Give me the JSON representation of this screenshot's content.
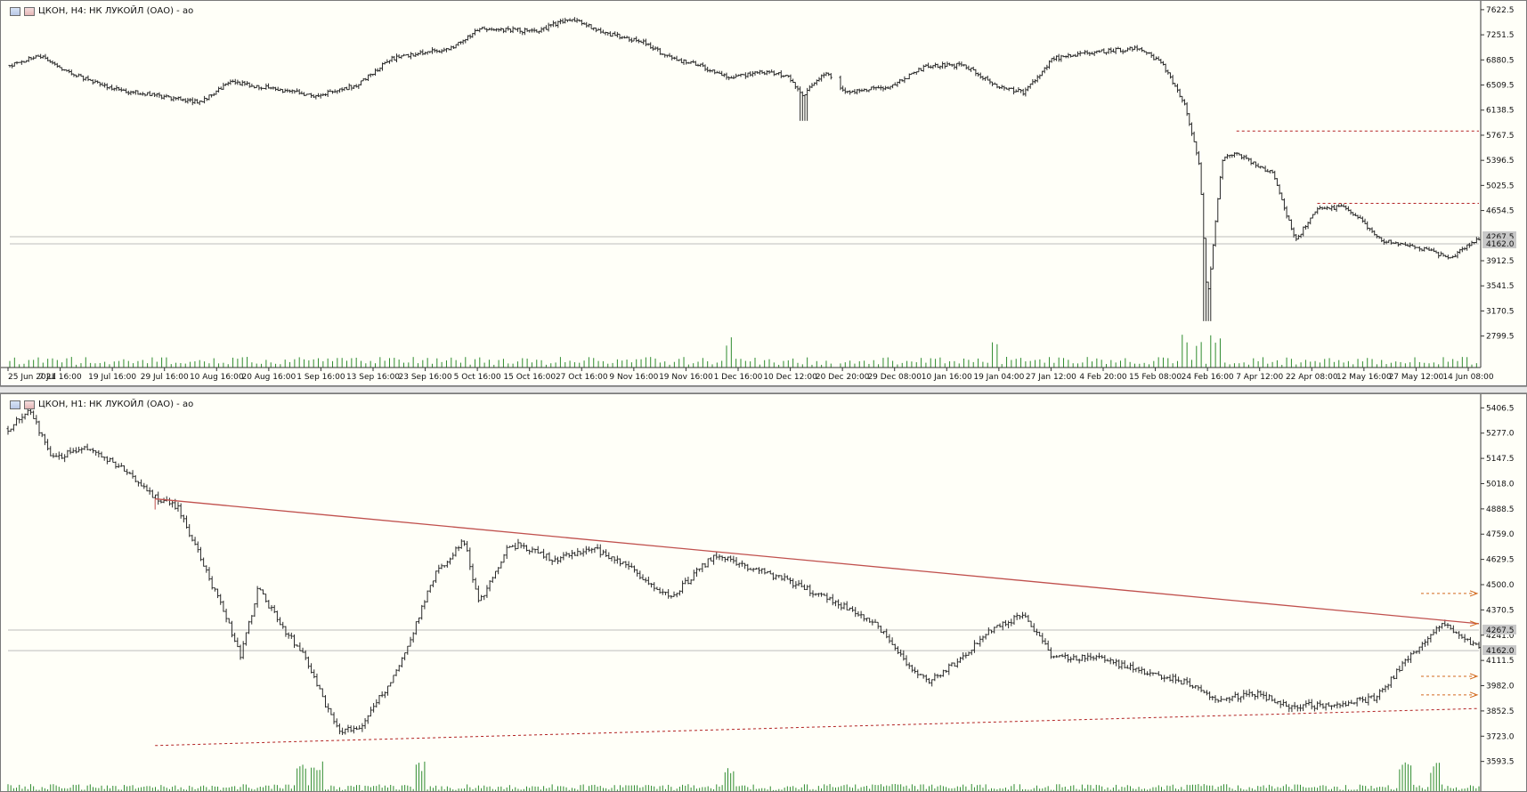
{
  "window": {
    "top_title": "ЦКОН, H4:  НК ЛУКОЙЛ (ОАО) - ао",
    "bottom_title": "ЦКОН, H1:  НК ЛУКОЙЛ (ОАО) - ао"
  },
  "colors": {
    "background": "#fffff8",
    "bar": "#2a2a2a",
    "volume": "#2e8b2e",
    "trendline": "#c0504d",
    "level": "#b22222",
    "grid_price": "#bdbdbd"
  },
  "chart_data": [
    {
      "type": "ohlc",
      "timeframe": "H4",
      "title": "ЦКОН, H4:  НК ЛУКОЙЛ (ОАО) - ао",
      "ylim": [
        2650,
        7700
      ],
      "y_ticks": [
        "7622.5",
        "7251.5",
        "6880.5",
        "6509.5",
        "6138.5",
        "5767.5",
        "5396.5",
        "5025.5",
        "4654.5",
        "3912.5",
        "3541.5",
        "3170.5",
        "2799.5"
      ],
      "price_labels": [
        "4267.5",
        "4162.0"
      ],
      "x_ticks": [
        "25 Jun 2021",
        "7 Jul 16:00",
        "19 Jul 16:00",
        "29 Jul 16:00",
        "10 Aug 16:00",
        "20 Aug 16:00",
        "1 Sep 16:00",
        "13 Sep 16:00",
        "23 Sep 16:00",
        "5 Oct 16:00",
        "15 Oct 16:00",
        "27 Oct 16:00",
        "9 Nov 16:00",
        "19 Nov 16:00",
        "1 Dec 16:00",
        "10 Dec 12:00",
        "20 Dec 20:00",
        "29 Dec 08:00",
        "10 Jan 16:00",
        "19 Jan 04:00",
        "27 Jan 12:00",
        "4 Feb 20:00",
        "15 Feb 08:00",
        "24 Feb 16:00",
        "7 Apr 12:00",
        "22 Apr 08:00",
        "12 May 16:00",
        "27 May 12:00",
        "14 Jun 08:00"
      ],
      "anchors": [
        [
          0,
          6800
        ],
        [
          0.02,
          6950
        ],
        [
          0.04,
          6700
        ],
        [
          0.07,
          6450
        ],
        [
          0.1,
          6350
        ],
        [
          0.13,
          6250
        ],
        [
          0.15,
          6550
        ],
        [
          0.18,
          6450
        ],
        [
          0.21,
          6350
        ],
        [
          0.235,
          6500
        ],
        [
          0.26,
          6900
        ],
        [
          0.3,
          7050
        ],
        [
          0.32,
          7350
        ],
        [
          0.36,
          7300
        ],
        [
          0.38,
          7500
        ],
        [
          0.41,
          7250
        ],
        [
          0.43,
          7150
        ],
        [
          0.45,
          6900
        ],
        [
          0.47,
          6800
        ],
        [
          0.49,
          6600
        ],
        [
          0.51,
          6700
        ],
        [
          0.53,
          6650
        ],
        [
          0.54,
          6350
        ],
        [
          0.555,
          6700
        ],
        [
          0.57,
          6400
        ],
        [
          0.6,
          6500
        ],
        [
          0.625,
          6800
        ],
        [
          0.65,
          6800
        ],
        [
          0.67,
          6500
        ],
        [
          0.69,
          6400
        ],
        [
          0.71,
          6900
        ],
        [
          0.74,
          7000
        ],
        [
          0.77,
          7050
        ],
        [
          0.785,
          6800
        ],
        [
          0.8,
          6200
        ],
        [
          0.81,
          5300
        ],
        [
          0.815,
          3300
        ],
        [
          0.825,
          5400
        ],
        [
          0.835,
          5500
        ],
        [
          0.86,
          5200
        ],
        [
          0.875,
          4200
        ],
        [
          0.89,
          4700
        ],
        [
          0.91,
          4700
        ],
        [
          0.935,
          4200
        ],
        [
          0.96,
          4100
        ],
        [
          0.98,
          3950
        ],
        [
          1,
          4250
        ]
      ],
      "gap": [
        0.56,
        0.565
      ],
      "volume_spikes": [
        0.49,
        0.67,
        0.8,
        0.81,
        0.82
      ],
      "levels": [
        {
          "value": 5830,
          "from": 0.835
        },
        {
          "value": 4760,
          "from": 0.89
        }
      ],
      "current_lines": [
        4267.5,
        4162.0
      ]
    },
    {
      "type": "ohlc",
      "timeframe": "H1",
      "title": "ЦКОН, H1:  НК ЛУКОЙЛ (ОАО) - ао",
      "ylim": [
        3560,
        5440
      ],
      "y_ticks": [
        "5406.5",
        "5277.0",
        "5147.5",
        "5018.0",
        "4888.5",
        "4759.0",
        "4629.5",
        "4500.0",
        "4370.5",
        "4241.0",
        "4111.5",
        "3982.0",
        "3852.5",
        "3723.0",
        "3593.5"
      ],
      "price_labels": [
        "4267.5",
        "4162.0"
      ],
      "anchors": [
        [
          0,
          5300
        ],
        [
          0.015,
          5390
        ],
        [
          0.03,
          5150
        ],
        [
          0.055,
          5200
        ],
        [
          0.08,
          5080
        ],
        [
          0.1,
          4950
        ],
        [
          0.115,
          4900
        ],
        [
          0.13,
          4650
        ],
        [
          0.15,
          4300
        ],
        [
          0.158,
          4130
        ],
        [
          0.17,
          4480
        ],
        [
          0.185,
          4300
        ],
        [
          0.2,
          4150
        ],
        [
          0.215,
          3900
        ],
        [
          0.225,
          3750
        ],
        [
          0.24,
          3780
        ],
        [
          0.26,
          4000
        ],
        [
          0.275,
          4250
        ],
        [
          0.29,
          4550
        ],
        [
          0.31,
          4730
        ],
        [
          0.32,
          4400
        ],
        [
          0.34,
          4700
        ],
        [
          0.35,
          4700
        ],
        [
          0.37,
          4630
        ],
        [
          0.4,
          4680
        ],
        [
          0.42,
          4600
        ],
        [
          0.45,
          4430
        ],
        [
          0.48,
          4650
        ],
        [
          0.5,
          4600
        ],
        [
          0.53,
          4520
        ],
        [
          0.56,
          4420
        ],
        [
          0.59,
          4300
        ],
        [
          0.61,
          4100
        ],
        [
          0.625,
          4000
        ],
        [
          0.645,
          4100
        ],
        [
          0.665,
          4250
        ],
        [
          0.69,
          4350
        ],
        [
          0.71,
          4130
        ],
        [
          0.74,
          4120
        ],
        [
          0.77,
          4060
        ],
        [
          0.8,
          4000
        ],
        [
          0.825,
          3900
        ],
        [
          0.845,
          3950
        ],
        [
          0.87,
          3880
        ],
        [
          0.9,
          3880
        ],
        [
          0.93,
          3920
        ],
        [
          0.955,
          4150
        ],
        [
          0.975,
          4300
        ],
        [
          1,
          4180
        ]
      ],
      "volume_spikes": [
        0.2,
        0.21,
        0.28,
        0.49,
        0.95,
        0.97
      ],
      "trendline": {
        "from": [
          0.1,
          4940
        ],
        "to": [
          1.0,
          4300
        ]
      },
      "support": {
        "from": [
          0.1,
          3675
        ],
        "to": [
          1.0,
          3865
        ]
      },
      "arrows": [
        4455,
        4030,
        3935
      ],
      "current_lines": [
        4267.5,
        4162.0
      ]
    }
  ]
}
